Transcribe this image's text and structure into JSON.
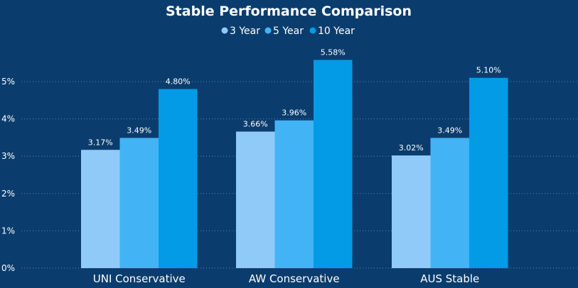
{
  "chart_data": {
    "type": "bar",
    "title": "Stable Performance Comparison",
    "categories": [
      "UNI Conservative",
      "AW Conservative",
      "AUS Stable"
    ],
    "series": [
      {
        "name": "3 Year",
        "color": "#90caf9",
        "values": [
          3.17,
          3.66,
          3.02
        ],
        "labels": [
          "3.17%",
          "3.66%",
          "3.02%"
        ]
      },
      {
        "name": "5 Year",
        "color": "#42b4f5",
        "values": [
          3.49,
          3.96,
          3.49
        ],
        "labels": [
          "3.49%",
          "3.96%",
          "3.49%"
        ]
      },
      {
        "name": "10 Year",
        "color": "#039be5",
        "values": [
          4.8,
          5.58,
          5.1
        ],
        "labels": [
          "4.80%",
          "5.58%",
          "5.10%"
        ]
      }
    ],
    "yticks": [
      0,
      1,
      2,
      3,
      4,
      5
    ],
    "ytick_labels": [
      "0%",
      "1%",
      "2%",
      "3%",
      "4%",
      "5%"
    ],
    "ylim": [
      0,
      6
    ],
    "grid": true,
    "legend_position": "top-center"
  }
}
